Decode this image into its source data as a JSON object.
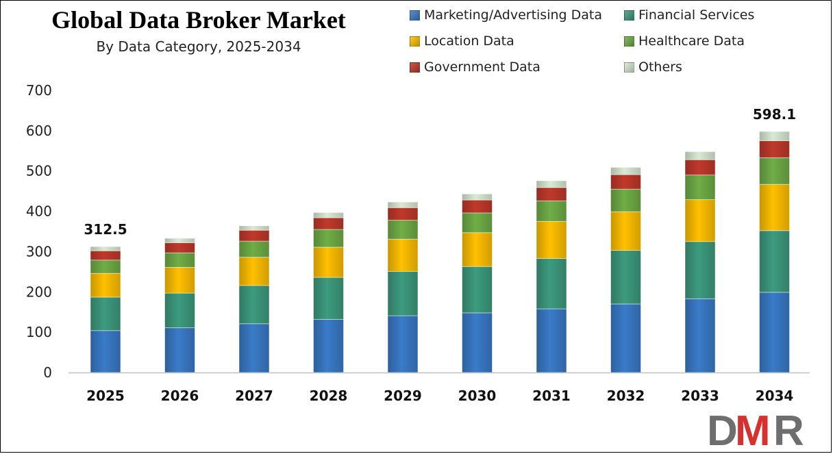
{
  "chart_data": {
    "type": "bar",
    "stacked": true,
    "title": "Global Data Broker Market",
    "subtitle": "By Data Category, 2025-2034",
    "xlabel": "",
    "ylabel": "",
    "ylim": [
      0,
      700
    ],
    "yticks": [
      0,
      100,
      200,
      300,
      400,
      500,
      600,
      700
    ],
    "grid": false,
    "legend_position": "top-right",
    "categories": [
      "2025",
      "2026",
      "2027",
      "2028",
      "2029",
      "2030",
      "2031",
      "2032",
      "2033",
      "2034"
    ],
    "series": [
      {
        "name": "Marketing/Advertising Data",
        "color": "#3a7bc8",
        "values": [
          104,
          111,
          121,
          132,
          141,
          148,
          158,
          170,
          183,
          199
        ]
      },
      {
        "name": "Financial Services",
        "color": "#3d9b7e",
        "values": [
          83,
          86,
          95,
          104,
          110,
          115,
          125,
          133,
          142,
          153
        ]
      },
      {
        "name": "Location Data",
        "color": "#ffc000",
        "values": [
          59,
          64,
          70,
          75,
          80,
          84,
          92,
          96,
          104,
          115
        ]
      },
      {
        "name": "Healthcare Data",
        "color": "#70ad47",
        "values": [
          33,
          36,
          40,
          44,
          47,
          49,
          51,
          56,
          61,
          66
        ]
      },
      {
        "name": "Government Data",
        "color": "#c0392b",
        "values": [
          23,
          25,
          27,
          29,
          31,
          32,
          33,
          36,
          38,
          42
        ]
      },
      {
        "name": "Others",
        "color": "#d9ead3",
        "values": [
          10.5,
          11,
          11,
          13,
          14,
          15,
          17,
          18,
          20,
          23.1
        ]
      }
    ],
    "data_labels": [
      {
        "category": "2025",
        "text": "312.5"
      },
      {
        "category": "2034",
        "text": "598.1"
      }
    ]
  },
  "logo": {
    "text": "DMR",
    "colors": {
      "d": "#6e6e6e",
      "m": "#d7312f",
      "r": "#6e6e6e"
    }
  }
}
